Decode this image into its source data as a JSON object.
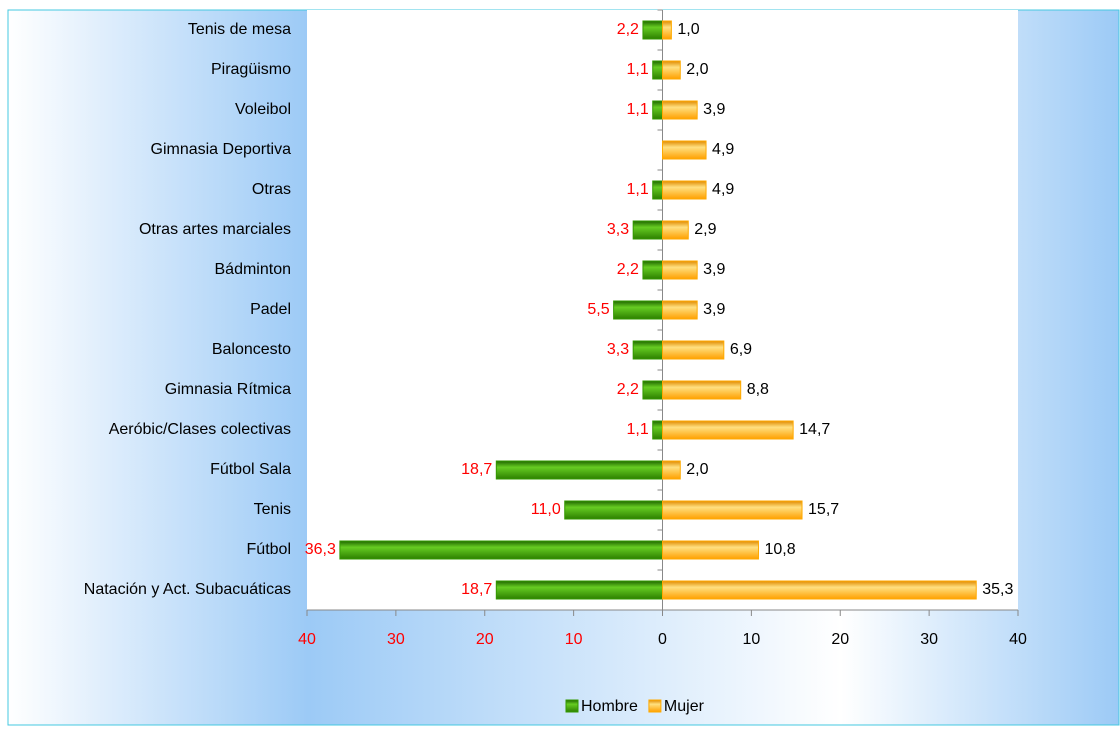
{
  "chart_data": {
    "type": "butterfly",
    "categories": [
      "Tenis de mesa",
      "Piragüismo",
      "Voleibol",
      "Gimnasia Deportiva",
      "Otras",
      "Otras artes marciales",
      "Bádminton",
      "Padel",
      "Baloncesto",
      "Gimnasia Rítmica",
      "Aeróbic/Clases colectivas",
      "Fútbol Sala",
      "Tenis",
      "Fútbol",
      "Natación y Act. Subacuáticas"
    ],
    "series": [
      {
        "name": "Hombre",
        "color": "#339900",
        "label_color": "#ff0000",
        "side": "left",
        "values": [
          2.2,
          1.1,
          1.1,
          null,
          1.1,
          3.3,
          2.2,
          5.5,
          3.3,
          2.2,
          1.1,
          18.7,
          11.0,
          36.3,
          18.7
        ],
        "value_labels": [
          "2,2",
          "1,1",
          "1,1",
          null,
          "1,1",
          "3,3",
          "2,2",
          "5,5",
          "3,3",
          "2,2",
          "1,1",
          "18,7",
          "11,0",
          "36,3",
          "18,7"
        ]
      },
      {
        "name": "Mujer",
        "color": "#ffaa00",
        "label_color": "#000000",
        "side": "right",
        "values": [
          1.0,
          2.0,
          3.9,
          4.9,
          4.9,
          2.9,
          3.9,
          3.9,
          6.9,
          8.8,
          14.7,
          2.0,
          15.7,
          10.8,
          35.3
        ],
        "value_labels": [
          "1,0",
          "2,0",
          "3,9",
          "4,9",
          "4,9",
          "2,9",
          "3,9",
          "3,9",
          "6,9",
          "8,8",
          "14,7",
          "2,0",
          "15,7",
          "10,8",
          "35,3"
        ]
      }
    ],
    "xlim": [
      -40,
      40
    ],
    "xticks": [
      {
        "value": -40,
        "label": "40"
      },
      {
        "value": -30,
        "label": "30"
      },
      {
        "value": -20,
        "label": "20"
      },
      {
        "value": -10,
        "label": "10"
      },
      0,
      10,
      20,
      30,
      40
    ],
    "legend": "bottom"
  }
}
